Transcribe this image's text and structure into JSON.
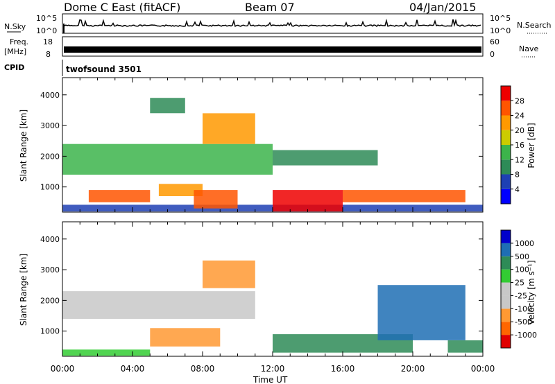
{
  "header": {
    "station": "Dome C East (fitACF)",
    "beam": "Beam 07",
    "date": "04/Jan/2015"
  },
  "nsky_panel": {
    "left_label": "N.Sky",
    "left_ticks": [
      "10^5",
      "10^0"
    ],
    "right_label": "N.Search",
    "right_ticks": [
      "10^5",
      "10^0"
    ]
  },
  "freq_panel": {
    "left_label_1": "Freq.",
    "left_label_2": "[MHz]",
    "left_ticks": [
      "18",
      "8"
    ],
    "right_label": "Nave",
    "right_ticks": [
      "60",
      "0"
    ]
  },
  "cpid": {
    "label": "CPID",
    "value": "twofsound 3501"
  },
  "colors": {
    "power": [
      "#0000ff",
      "#1e40b4",
      "#2e8b57",
      "#3cb44b",
      "#cccc00",
      "#ff9900",
      "#ff5500",
      "#ee0000"
    ],
    "velocity": [
      "#e00000",
      "#ff6600",
      "#ff9933",
      "#c8c8c8",
      "#c8c8c8",
      "#33cc33",
      "#2e8b57",
      "#1e6eb4",
      "#0000cc"
    ]
  },
  "chart_data": [
    {
      "type": "heatmap",
      "name": "power",
      "ylabel": "Slant Range [km]",
      "xlabel": "Time UT",
      "x_ticks": [
        "00:00",
        "04:00",
        "08:00",
        "12:00",
        "16:00",
        "20:00",
        "00:00"
      ],
      "x_range_hours": [
        0,
        24
      ],
      "ylim": [
        180,
        4560
      ],
      "y_ticks": [
        1000,
        2000,
        3000,
        4000
      ],
      "colorbar": {
        "label": "Power [dB]",
        "ticks": [
          "4",
          "8",
          "12",
          "16",
          "20",
          "24",
          "28"
        ],
        "range": [
          0,
          32
        ]
      },
      "regions": [
        {
          "x": [
            0,
            24
          ],
          "y": [
            200,
            420
          ],
          "value": 6
        },
        {
          "x": [
            1.5,
            5
          ],
          "y": [
            500,
            900
          ],
          "value": 24
        },
        {
          "x": [
            5.5,
            8
          ],
          "y": [
            700,
            1100
          ],
          "value": 22
        },
        {
          "x": [
            7.5,
            10
          ],
          "y": [
            300,
            900
          ],
          "value": 26
        },
        {
          "x": [
            12,
            16
          ],
          "y": [
            200,
            900
          ],
          "value": 30
        },
        {
          "x": [
            16,
            23
          ],
          "y": [
            500,
            900
          ],
          "value": 26
        },
        {
          "x": [
            0,
            12
          ],
          "y": [
            1400,
            2400
          ],
          "value": 14
        },
        {
          "x": [
            8,
            11
          ],
          "y": [
            2400,
            3400
          ],
          "value": 20
        },
        {
          "x": [
            12,
            18
          ],
          "y": [
            1700,
            2200
          ],
          "value": 10
        },
        {
          "x": [
            5,
            7
          ],
          "y": [
            3400,
            3900
          ],
          "value": 8
        }
      ]
    },
    {
      "type": "heatmap",
      "name": "velocity",
      "ylabel": "Slant Range [km]",
      "xlabel": "Time UT",
      "x_ticks": [
        "00:00",
        "04:00",
        "08:00",
        "12:00",
        "16:00",
        "20:00",
        "00:00"
      ],
      "x_range_hours": [
        0,
        24
      ],
      "ylim": [
        180,
        4560
      ],
      "y_ticks": [
        1000,
        2000,
        3000,
        4000
      ],
      "colorbar": {
        "label": "Velocity [m s⁻¹]",
        "ticks": [
          "1000",
          "500",
          "100",
          "25",
          "-25",
          "-100",
          "-500",
          "-1000"
        ]
      },
      "regions": [
        {
          "x": [
            0,
            11
          ],
          "y": [
            1400,
            2300
          ],
          "value": 0
        },
        {
          "x": [
            5,
            9
          ],
          "y": [
            500,
            1100
          ],
          "value": -300
        },
        {
          "x": [
            0,
            5
          ],
          "y": [
            200,
            400
          ],
          "value": 60
        },
        {
          "x": [
            12,
            20
          ],
          "y": [
            300,
            900
          ],
          "value": 300
        },
        {
          "x": [
            18,
            23
          ],
          "y": [
            700,
            2500
          ],
          "value": 600
        },
        {
          "x": [
            22,
            24
          ],
          "y": [
            300,
            700
          ],
          "value": 200
        },
        {
          "x": [
            8,
            11
          ],
          "y": [
            2400,
            3300
          ],
          "value": -200
        }
      ]
    }
  ]
}
